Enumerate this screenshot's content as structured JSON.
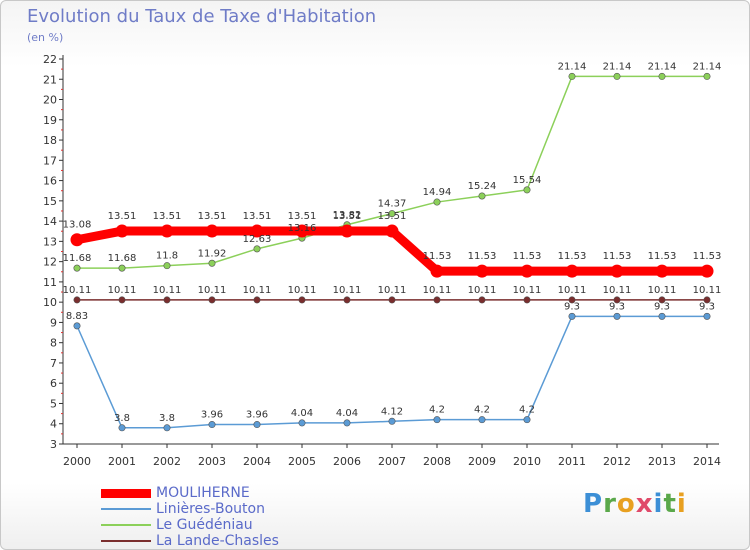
{
  "header": {
    "title": "Evolution du Taux de Taxe d'Habitation",
    "subtitle": "(en %)"
  },
  "logo": {
    "letters": [
      "P",
      "r",
      "o",
      "x",
      "i",
      "t",
      "i"
    ],
    "colors": [
      "#3c8fd6",
      "#5aa84a",
      "#e8a020",
      "#e04a6a",
      "#3c8fd6",
      "#5aa84a",
      "#e8a020"
    ]
  },
  "chart_data": {
    "type": "line",
    "title": "Evolution du Taux de Taxe d'Habitation",
    "ylabel": "(en %)",
    "xlabel": "",
    "ylim": [
      3,
      22
    ],
    "yticks": [
      3,
      4,
      5,
      6,
      7,
      8,
      9,
      10,
      11,
      12,
      13,
      14,
      15,
      16,
      17,
      18,
      19,
      20,
      21,
      22
    ],
    "grid": false,
    "legend_position": "bottom-left",
    "x": [
      "2000",
      "2001",
      "2002",
      "2003",
      "2004",
      "2005",
      "2006",
      "2007",
      "2008",
      "2009",
      "2010",
      "2011",
      "2012",
      "2013",
      "2014"
    ],
    "series": [
      {
        "name": "MOULIHERNE",
        "color": "#ff0000",
        "emphasis": true,
        "values": [
          13.08,
          13.51,
          13.51,
          13.51,
          13.51,
          13.51,
          13.51,
          13.51,
          11.53,
          11.53,
          11.53,
          11.53,
          11.53,
          11.53,
          11.53
        ],
        "labels": [
          "13.08",
          "13.51",
          "13.51",
          "13.51",
          "13.51",
          "13.51",
          "13.51",
          "13.51",
          "11.53",
          "11.53",
          "11.53",
          "11.53",
          "11.53",
          "11.53",
          "11.53"
        ]
      },
      {
        "name": "Linières-Bouton",
        "color": "#5b9bd5",
        "emphasis": false,
        "values": [
          8.83,
          3.8,
          3.8,
          3.96,
          3.96,
          4.04,
          4.04,
          4.12,
          4.2,
          4.2,
          4.2,
          9.3,
          9.3,
          9.3,
          9.3
        ],
        "labels": [
          "8.83",
          "3.8",
          "3.8",
          "3.96",
          "3.96",
          "4.04",
          "4.04",
          "4.12",
          "4.2",
          "4.2",
          "4.2",
          "9.3",
          "9.3",
          "9.3",
          "9.3"
        ]
      },
      {
        "name": "Le Guédéniau",
        "color": "#8cd05a",
        "emphasis": false,
        "values": [
          11.68,
          11.68,
          11.8,
          11.92,
          12.63,
          13.16,
          13.82,
          14.37,
          14.94,
          15.24,
          15.54,
          21.14,
          21.14,
          21.14,
          21.14
        ],
        "labels": [
          "11.68",
          "11.68",
          "11.8",
          "11.92",
          "12.63",
          "13.16",
          "13.82",
          "14.37",
          "14.94",
          "15.24",
          "15.54",
          "21.14",
          "21.14",
          "21.14",
          "21.14"
        ]
      },
      {
        "name": "La Lande-Chasles",
        "color": "#7a2e2e",
        "emphasis": false,
        "values": [
          10.11,
          10.11,
          10.11,
          10.11,
          10.11,
          10.11,
          10.11,
          10.11,
          10.11,
          10.11,
          10.11,
          10.11,
          10.11,
          10.11,
          10.11
        ],
        "labels": [
          "10.11",
          "10.11",
          "10.11",
          "10.11",
          "10.11",
          "10.11",
          "10.11",
          "10.11",
          "10.11",
          "10.11",
          "10.11",
          "10.11",
          "10.11",
          "10.11",
          "10.11"
        ]
      }
    ]
  }
}
